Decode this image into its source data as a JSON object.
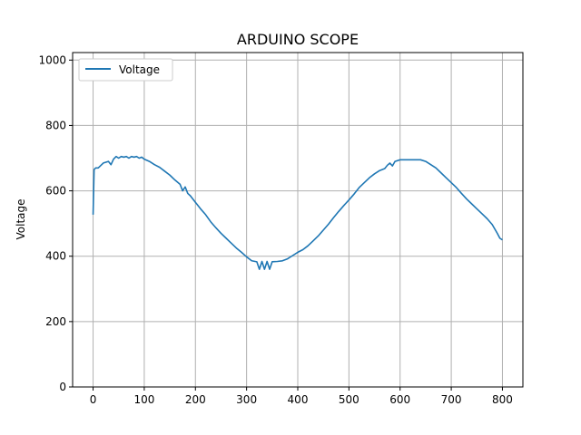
{
  "chart_data": {
    "type": "line",
    "title": "ARDUINO SCOPE",
    "xlabel": "",
    "ylabel": "Voltage",
    "xlim": [
      -40,
      840
    ],
    "ylim": [
      0,
      1023
    ],
    "xticks": [
      0,
      100,
      200,
      300,
      400,
      500,
      600,
      700,
      800
    ],
    "yticks": [
      0,
      200,
      400,
      600,
      800,
      1000
    ],
    "grid": true,
    "legend": "upper-left",
    "series_color": "#1f77b4",
    "series": [
      {
        "name": "Voltage",
        "x": [
          0,
          2,
          5,
          10,
          20,
          30,
          35,
          40,
          45,
          50,
          55,
          60,
          65,
          70,
          75,
          80,
          85,
          90,
          95,
          100,
          110,
          120,
          130,
          140,
          150,
          160,
          170,
          175,
          180,
          185,
          190,
          200,
          210,
          220,
          230,
          240,
          250,
          260,
          270,
          280,
          290,
          300,
          310,
          320,
          325,
          330,
          335,
          340,
          345,
          350,
          360,
          370,
          380,
          390,
          400,
          410,
          420,
          430,
          440,
          450,
          460,
          470,
          480,
          490,
          500,
          510,
          520,
          530,
          540,
          550,
          560,
          570,
          575,
          580,
          585,
          590,
          600,
          610,
          620,
          630,
          640,
          650,
          660,
          670,
          680,
          690,
          700,
          710,
          720,
          730,
          740,
          750,
          760,
          770,
          780,
          790,
          795,
          800
        ],
        "y": [
          527,
          665,
          670,
          670,
          685,
          690,
          680,
          697,
          705,
          700,
          705,
          703,
          705,
          700,
          705,
          703,
          705,
          700,
          703,
          697,
          690,
          680,
          672,
          660,
          648,
          633,
          620,
          600,
          612,
          592,
          585,
          565,
          545,
          527,
          505,
          487,
          470,
          455,
          440,
          425,
          412,
          398,
          386,
          383,
          360,
          384,
          360,
          384,
          360,
          383,
          384,
          386,
          392,
          402,
          412,
          420,
          432,
          447,
          462,
          480,
          498,
          518,
          537,
          555,
          572,
          590,
          610,
          625,
          640,
          652,
          662,
          668,
          678,
          685,
          676,
          690,
          695,
          695,
          695,
          695,
          695,
          690,
          680,
          670,
          655,
          640,
          625,
          610,
          592,
          575,
          560,
          545,
          530,
          515,
          497,
          470,
          455,
          450
        ]
      }
    ]
  }
}
